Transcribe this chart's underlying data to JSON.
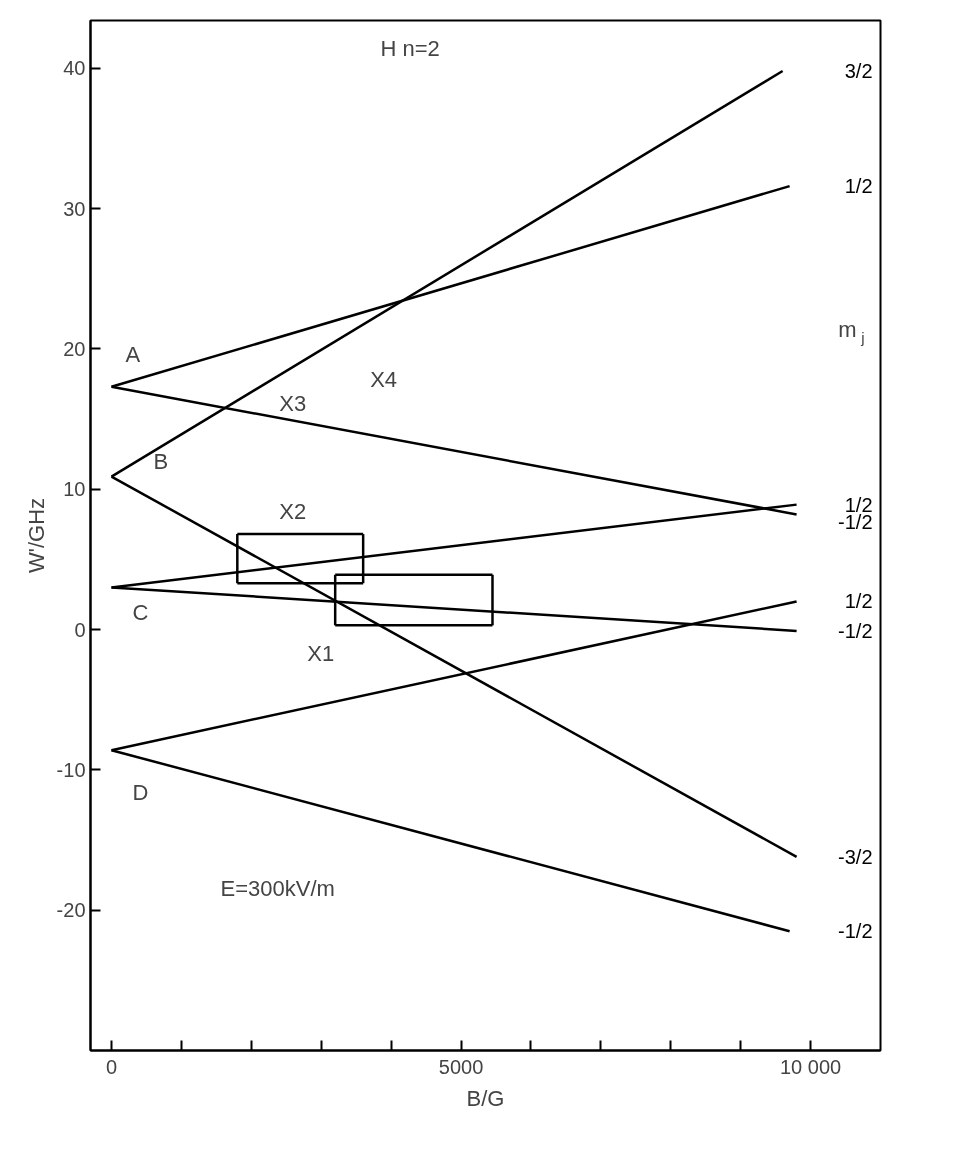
{
  "chart_data": {
    "type": "line",
    "title": "H n=2",
    "subtitle": "E=300kV/m",
    "xlabel": "B/G",
    "ylabel": "W'/GHz",
    "legend_title": "m$_{j}$",
    "xlim": [
      -300,
      11000
    ],
    "ylim": [
      -30,
      43.4
    ],
    "xticks": [
      0,
      {
        "value": 1000,
        "label": null
      },
      {
        "value": 2000,
        "label": null
      },
      {
        "value": 3000,
        "label": null
      },
      {
        "value": 4000,
        "label": null
      },
      5000,
      {
        "value": 6000,
        "label": null
      },
      {
        "value": 7000,
        "label": null
      },
      {
        "value": 8000,
        "label": null
      },
      {
        "value": 9000,
        "label": null
      },
      {
        "value": 10000,
        "label": "10 000"
      }
    ],
    "yticks": [
      -20,
      -10,
      0,
      10,
      20,
      30,
      40
    ],
    "grid": false,
    "marker": "none",
    "line_style": "solid",
    "series": [
      {
        "name": "3/2",
        "color": "#000000",
        "x": [
          0,
          9600
        ],
        "values": [
          10.9,
          39.8
        ]
      },
      {
        "name": "1/2",
        "color": "#000000",
        "x": [
          0,
          9700
        ],
        "values": [
          17.3,
          31.6
        ]
      },
      {
        "name": "1/2",
        "color": "#000000",
        "x": [
          0,
          9800
        ],
        "values": [
          3.0,
          8.9
        ]
      },
      {
        "name": "-1/2",
        "color": "#000000",
        "x": [
          0,
          9800
        ],
        "values": [
          17.3,
          8.2
        ]
      },
      {
        "name": "1/2",
        "color": "#000000",
        "x": [
          0,
          9800
        ],
        "values": [
          -8.6,
          2.0
        ]
      },
      {
        "name": "-1/2",
        "color": "#000000",
        "x": [
          0,
          9800
        ],
        "values": [
          3.0,
          -0.1
        ]
      },
      {
        "name": "-3/2",
        "color": "#000000",
        "x": [
          0,
          9800
        ],
        "values": [
          10.9,
          -16.2
        ]
      },
      {
        "name": "-1/2",
        "color": "#000000",
        "x": [
          0,
          9700
        ],
        "values": [
          -8.6,
          -21.5
        ]
      },
      {
        "color": "#000000",
        "x": [
          1800,
          3600
        ],
        "values": [
          6.8,
          6.8
        ]
      },
      {
        "color": "#000000",
        "x": [
          1800,
          3600
        ],
        "values": [
          3.3,
          3.3
        ]
      },
      {
        "color": "#000000",
        "x": [
          1800,
          1800
        ],
        "values": [
          3.3,
          6.8
        ]
      },
      {
        "color": "#000000",
        "x": [
          3600,
          3600
        ],
        "values": [
          3.3,
          6.8
        ]
      },
      {
        "color": "#000000",
        "x": [
          3200,
          5450
        ],
        "values": [
          3.9,
          3.9
        ]
      },
      {
        "color": "#000000",
        "x": [
          3200,
          5450
        ],
        "values": [
          0.3,
          0.3
        ]
      },
      {
        "color": "#000000",
        "x": [
          3200,
          3200
        ],
        "values": [
          0.3,
          3.9
        ]
      },
      {
        "color": "#000000",
        "x": [
          5450,
          5450
        ],
        "values": [
          0.3,
          3.9
        ]
      }
    ],
    "annotations": [
      "A",
      "B",
      "C",
      "D",
      "X1",
      "X2",
      "X3",
      "X4"
    ]
  }
}
